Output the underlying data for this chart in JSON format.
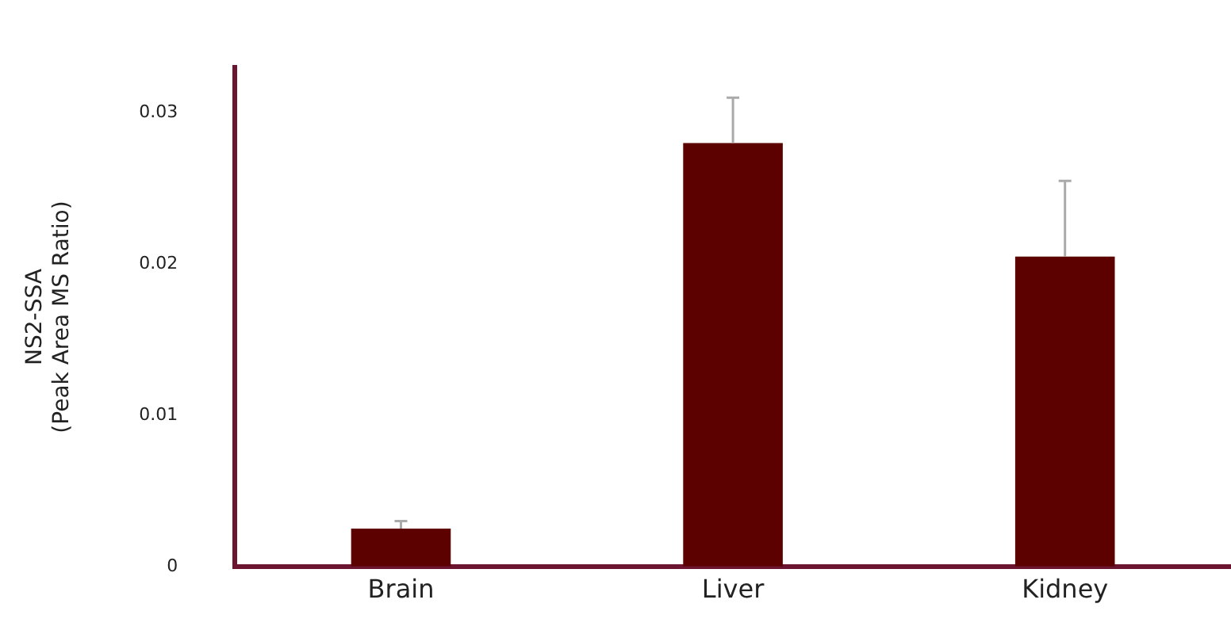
{
  "chart_data": {
    "type": "bar",
    "ylabel": "NS2-SSA\n(Peak Area MS Ratio)",
    "categories": [
      "Brain",
      "Liver",
      "Kidney"
    ],
    "values": [
      0.0025,
      0.028,
      0.0205
    ],
    "errors": [
      [
        0.0025,
        0.003
      ],
      [
        0.028,
        0.031
      ],
      [
        0.0205,
        0.0255
      ]
    ],
    "color": "#5c0000",
    "ylim": [
      0,
      0.033
    ],
    "yticks": [
      0,
      0.01,
      0.02,
      0.03
    ],
    "grid": false,
    "legend": false
  }
}
